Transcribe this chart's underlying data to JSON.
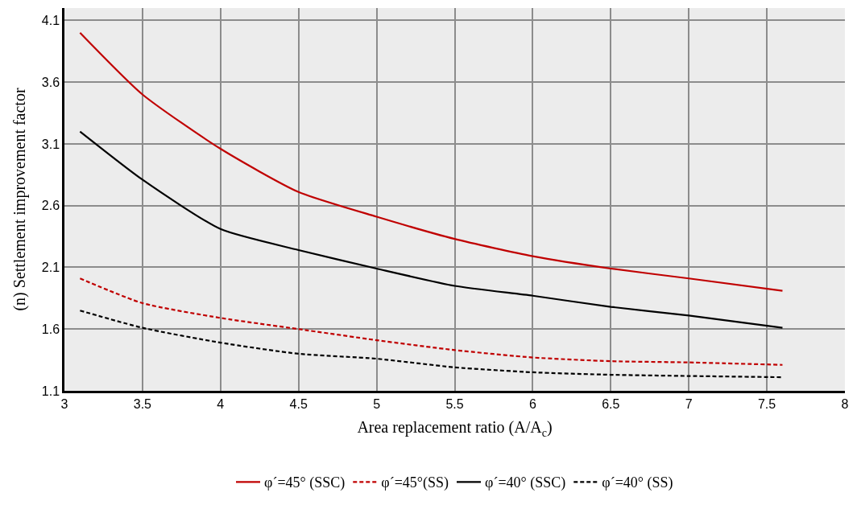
{
  "chart_data": {
    "type": "line",
    "xlabel": "Area replacement ratio (A/A$_{c}$)",
    "ylabel": "(n) Settlement improvement factor",
    "x": [
      3.1,
      3.5,
      4,
      4.5,
      5,
      5.5,
      6,
      6.5,
      7,
      7.6
    ],
    "series": [
      {
        "name": "φ´=45° (SSC)",
        "color": "#c00000",
        "line_style": "solid",
        "values": [
          4.0,
          3.5,
          3.06,
          2.71,
          2.51,
          2.33,
          2.19,
          2.09,
          2.01,
          1.91
        ]
      },
      {
        "name": "φ´=45°(SS)",
        "color": "#c00000",
        "line_style": "dashed",
        "values": [
          2.01,
          1.81,
          1.69,
          1.6,
          1.51,
          1.43,
          1.37,
          1.34,
          1.33,
          1.31
        ]
      },
      {
        "name": "φ´=40° (SSC)",
        "color": "#000000",
        "line_style": "solid",
        "values": [
          3.2,
          2.81,
          2.41,
          2.24,
          2.09,
          1.95,
          1.87,
          1.78,
          1.71,
          1.61
        ]
      },
      {
        "name": "φ´=40° (SS)",
        "color": "#000000",
        "line_style": "dashed",
        "values": [
          1.75,
          1.61,
          1.49,
          1.4,
          1.36,
          1.29,
          1.25,
          1.23,
          1.22,
          1.21
        ]
      }
    ],
    "xlim": [
      3,
      8
    ],
    "xticks": [
      3,
      3.5,
      4,
      4.5,
      5,
      5.5,
      6,
      6.5,
      7,
      7.5,
      8
    ],
    "ylim": [
      1.1,
      4.2
    ],
    "yticks": [
      1.1,
      1.6,
      2.1,
      2.6,
      3.1,
      3.6,
      4.1
    ],
    "grid": true,
    "legend": "bottom",
    "marker": "none"
  }
}
